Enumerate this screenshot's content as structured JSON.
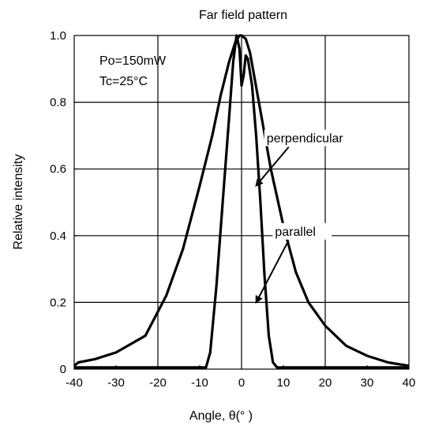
{
  "chart_data": {
    "type": "line",
    "title": "Far field pattern",
    "xlabel": "Angle, θ(° )",
    "ylabel": "Relative intensity",
    "xlim": [
      -40,
      40
    ],
    "ylim": [
      0,
      1.0
    ],
    "xticks": [
      -40,
      -30,
      -20,
      -10,
      0,
      10,
      20,
      30,
      40
    ],
    "yticks": [
      0,
      0.2,
      0.4,
      0.6,
      0.8,
      1.0
    ],
    "xtick_labels": [
      "-40",
      "-30",
      "-20",
      "-10",
      "0",
      "10",
      "20",
      "30",
      "40"
    ],
    "ytick_labels": [
      "0",
      "0.2",
      "0.4",
      "0.6",
      "0.8",
      "1.0"
    ],
    "grid": true,
    "conditions": [
      "Po=150mW",
      "Tc=25°C"
    ],
    "series": [
      {
        "name": "perpendicular",
        "x": [
          -40,
          -39,
          -35,
          -30,
          -23,
          -18,
          -14,
          -10,
          -7,
          -5,
          -3,
          -1.5,
          -0.5,
          0,
          1,
          2,
          3,
          5,
          7,
          10,
          13,
          16,
          20,
          25,
          30,
          35,
          40
        ],
        "y": [
          0.01,
          0.02,
          0.03,
          0.05,
          0.1,
          0.22,
          0.36,
          0.55,
          0.7,
          0.82,
          0.92,
          0.98,
          1.0,
          1.0,
          0.99,
          0.95,
          0.88,
          0.74,
          0.6,
          0.43,
          0.29,
          0.2,
          0.13,
          0.07,
          0.04,
          0.02,
          0.01
        ]
      },
      {
        "name": "parallel",
        "x": [
          -40,
          -30,
          -20,
          -10,
          -8.5,
          -7.5,
          -6,
          -4.5,
          -3,
          -2,
          -1.2,
          -0.5,
          0,
          0.5,
          1,
          1.5,
          2.5,
          3.5,
          4.5,
          5.5,
          6.5,
          7.5,
          8.5,
          10,
          20,
          30,
          40
        ],
        "y": [
          0.005,
          0.005,
          0.005,
          0.005,
          0.005,
          0.05,
          0.25,
          0.5,
          0.75,
          0.92,
          1.0,
          0.96,
          0.85,
          0.88,
          0.94,
          0.93,
          0.85,
          0.7,
          0.5,
          0.28,
          0.1,
          0.02,
          0.005,
          0.005,
          0.005,
          0.005,
          0.005
        ]
      }
    ],
    "annotations": [
      {
        "text": "perpendicular",
        "series": "perpendicular",
        "arrow_to": {
          "x": 3.5,
          "y": 0.55
        },
        "text_at": {
          "x": 6,
          "y": 0.68
        }
      },
      {
        "text": "parallel",
        "series": "parallel",
        "arrow_to": {
          "x": 3.5,
          "y": 0.2
        },
        "text_at": {
          "x": 8,
          "y": 0.4
        }
      }
    ]
  }
}
